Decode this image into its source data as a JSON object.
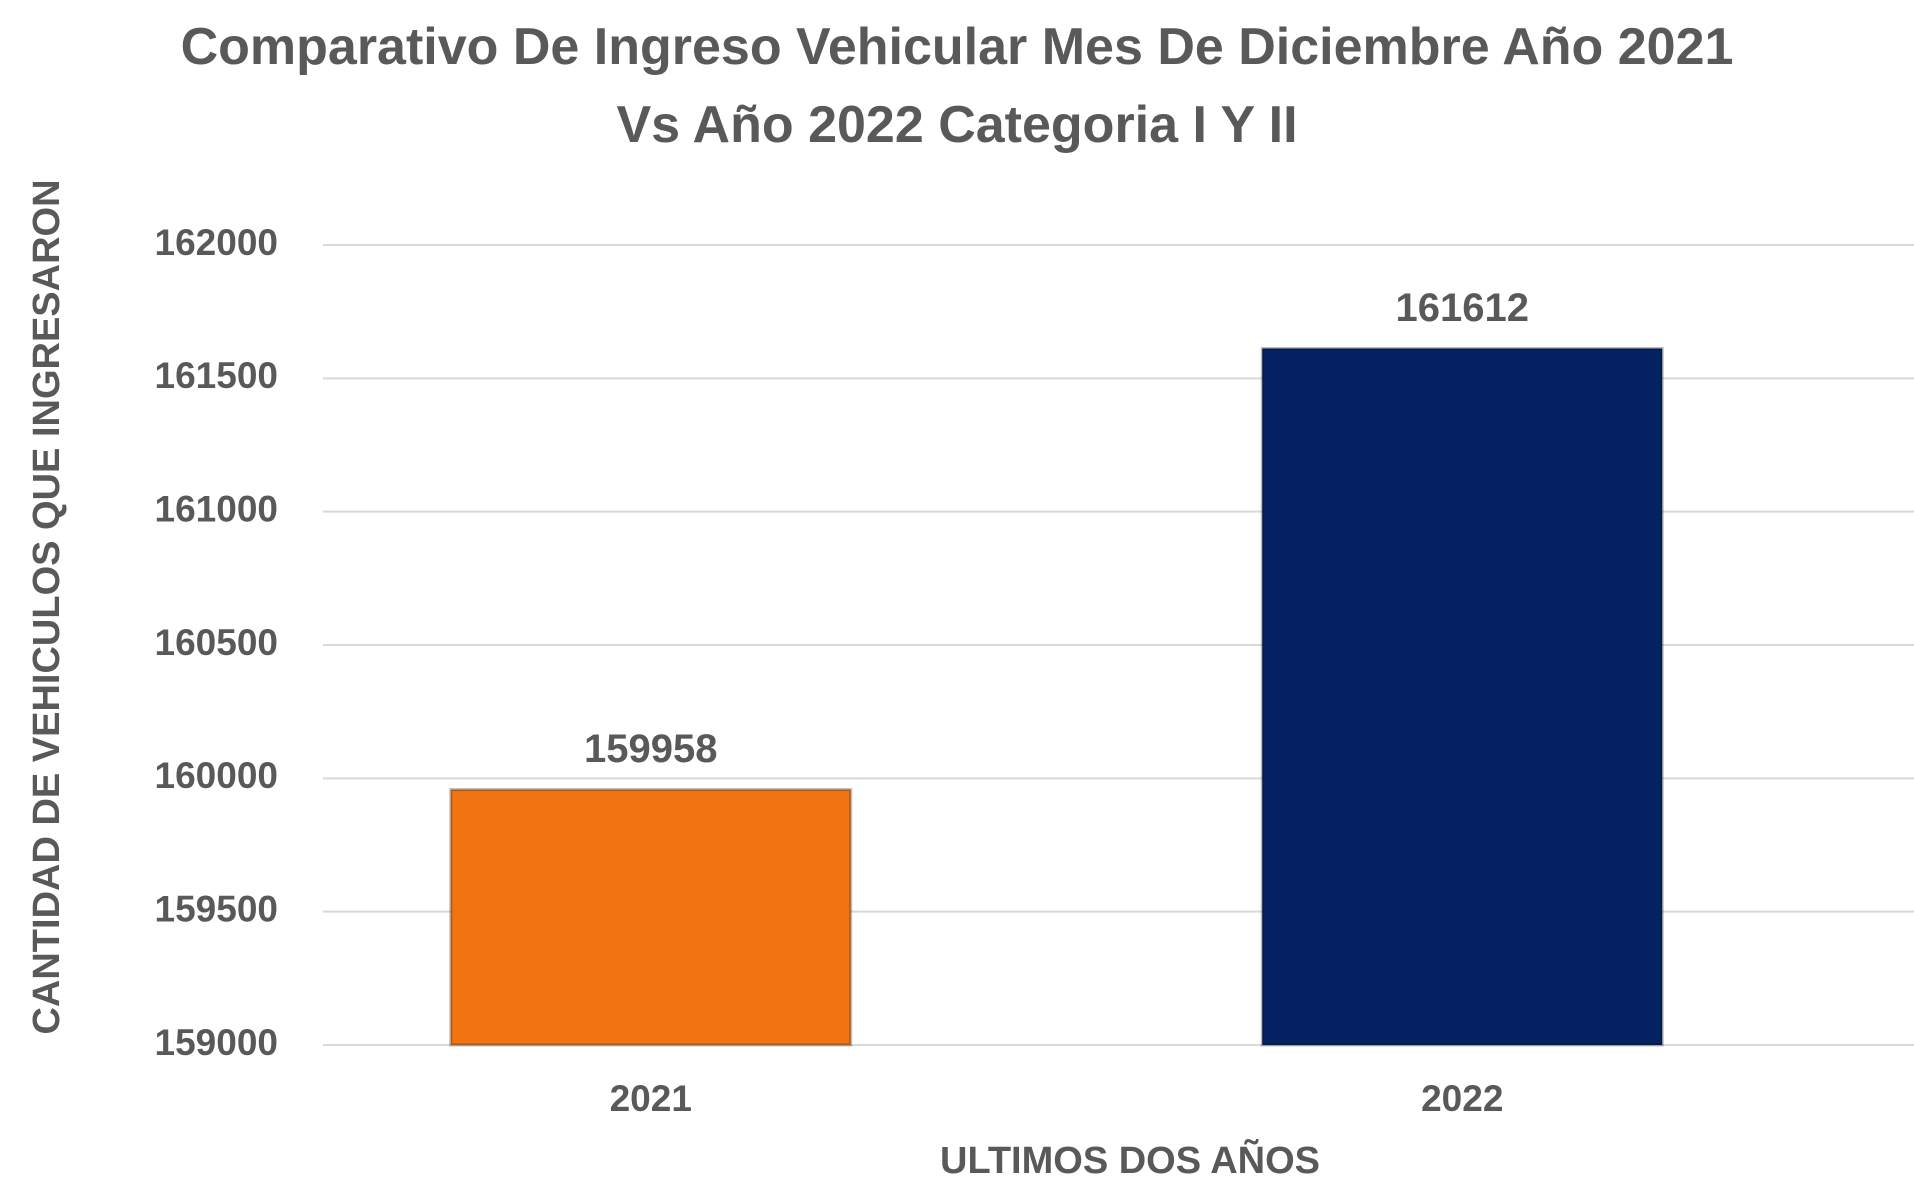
{
  "chart_data": {
    "type": "bar",
    "title": "Comparativo De Ingreso Vehicular Mes De Diciembre Año 2021 Vs Año 2022 Categoria I Y II",
    "categories": [
      "2021",
      "2022"
    ],
    "values": [
      159958,
      161612
    ],
    "colors": [
      "#f07412",
      "#042261"
    ],
    "x_label": "ULTIMOS DOS AÑOS",
    "y_label": "CANTIDAD DE VEHICULOS QUE INGRESARON",
    "ylim": [
      159000,
      162000
    ],
    "yticks": [
      159000,
      159500,
      160000,
      160500,
      161000,
      161500,
      162000
    ],
    "grid": true
  }
}
